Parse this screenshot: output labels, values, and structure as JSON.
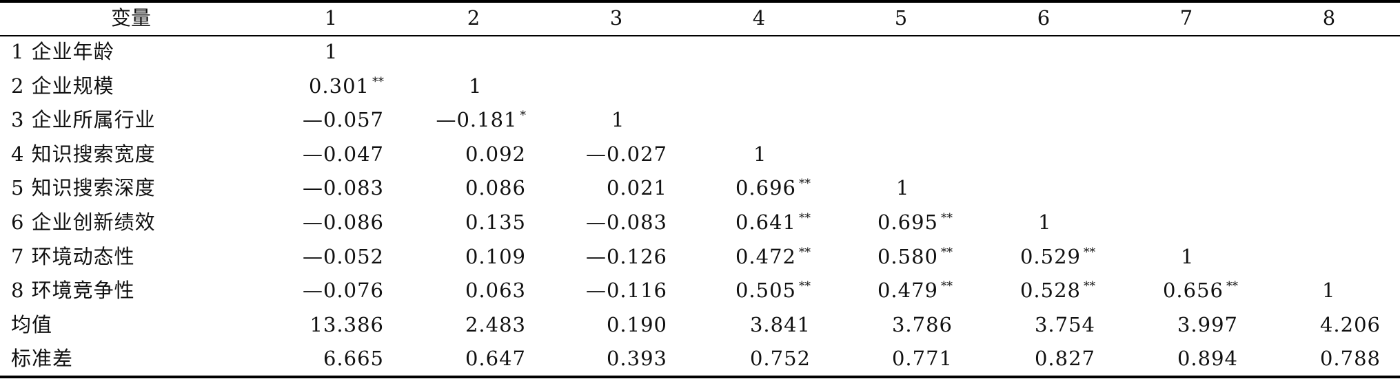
{
  "header": [
    "变量",
    "1",
    "2",
    "3",
    "4",
    "5",
    "6",
    "7",
    "8"
  ],
  "rows": [
    {
      "label": "1 企业年龄",
      "cells": [
        {
          "v": "1",
          "s": ""
        }
      ]
    },
    {
      "label": "2 企业规模",
      "cells": [
        {
          "v": "0.301",
          "s": "**"
        },
        {
          "v": "1",
          "s": ""
        }
      ]
    },
    {
      "label": "3 企业所属行业",
      "cells": [
        {
          "v": "—0.057",
          "s": ""
        },
        {
          "v": "—0.181",
          "s": "*"
        },
        {
          "v": "1",
          "s": ""
        }
      ]
    },
    {
      "label": "4 知识搜索宽度",
      "cells": [
        {
          "v": "—0.047",
          "s": ""
        },
        {
          "v": "0.092",
          "s": ""
        },
        {
          "v": "—0.027",
          "s": ""
        },
        {
          "v": "1",
          "s": ""
        }
      ]
    },
    {
      "label": "5 知识搜索深度",
      "cells": [
        {
          "v": "—0.083",
          "s": ""
        },
        {
          "v": "0.086",
          "s": ""
        },
        {
          "v": "0.021",
          "s": ""
        },
        {
          "v": "0.696",
          "s": "**"
        },
        {
          "v": "1",
          "s": ""
        }
      ]
    },
    {
      "label": "6 企业创新绩效",
      "cells": [
        {
          "v": "—0.086",
          "s": ""
        },
        {
          "v": "0.135",
          "s": ""
        },
        {
          "v": "—0.083",
          "s": ""
        },
        {
          "v": "0.641",
          "s": "**"
        },
        {
          "v": "0.695",
          "s": "**"
        },
        {
          "v": "1",
          "s": ""
        }
      ]
    },
    {
      "label": "7 环境动态性",
      "cells": [
        {
          "v": "—0.052",
          "s": ""
        },
        {
          "v": "0.109",
          "s": ""
        },
        {
          "v": "—0.126",
          "s": ""
        },
        {
          "v": "0.472",
          "s": "**"
        },
        {
          "v": "0.580",
          "s": "**"
        },
        {
          "v": "0.529",
          "s": "**"
        },
        {
          "v": "1",
          "s": ""
        }
      ]
    },
    {
      "label": "8 环境竞争性",
      "cells": [
        {
          "v": "—0.076",
          "s": ""
        },
        {
          "v": "0.063",
          "s": ""
        },
        {
          "v": "—0.116",
          "s": ""
        },
        {
          "v": "0.505",
          "s": "**"
        },
        {
          "v": "0.479",
          "s": "**"
        },
        {
          "v": "0.528",
          "s": "**"
        },
        {
          "v": "0.656",
          "s": "**"
        },
        {
          "v": "1",
          "s": ""
        }
      ]
    },
    {
      "label": "均值",
      "cells": [
        {
          "v": "13.386",
          "s": ""
        },
        {
          "v": "2.483",
          "s": ""
        },
        {
          "v": "0.190",
          "s": ""
        },
        {
          "v": "3.841",
          "s": ""
        },
        {
          "v": "3.786",
          "s": ""
        },
        {
          "v": "3.754",
          "s": ""
        },
        {
          "v": "3.997",
          "s": ""
        },
        {
          "v": "4.206",
          "s": ""
        }
      ]
    },
    {
      "label": "标准差",
      "cells": [
        {
          "v": "6.665",
          "s": ""
        },
        {
          "v": "0.647",
          "s": ""
        },
        {
          "v": "0.393",
          "s": ""
        },
        {
          "v": "0.752",
          "s": ""
        },
        {
          "v": "0.771",
          "s": ""
        },
        {
          "v": "0.827",
          "s": ""
        },
        {
          "v": "0.894",
          "s": ""
        },
        {
          "v": "0.788",
          "s": ""
        }
      ]
    }
  ]
}
